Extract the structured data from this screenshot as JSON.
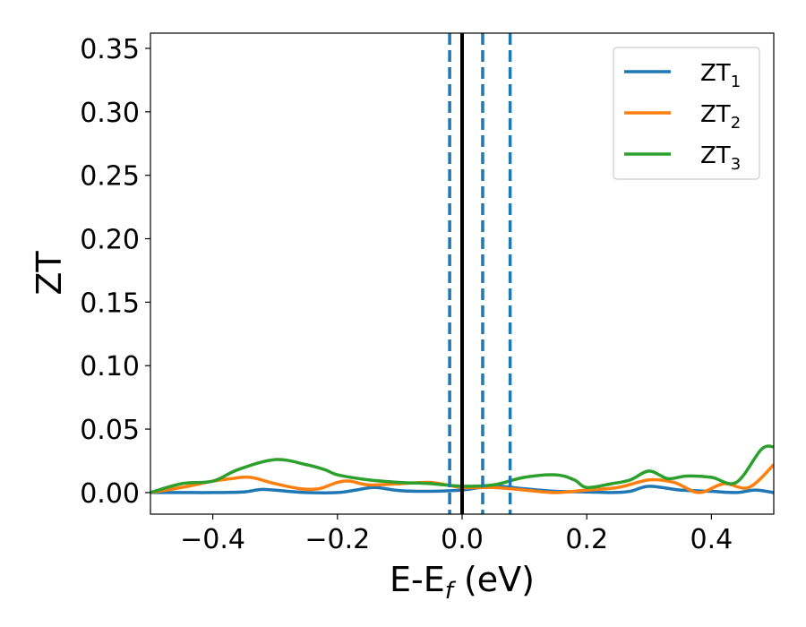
{
  "chart_data": {
    "type": "line",
    "xlabel_main": "E-E",
    "xlabel_sub": "f",
    "xlabel_unit": " (eV)",
    "ylabel": "ZT",
    "xlim": [
      -0.5,
      0.5
    ],
    "ylim": [
      -0.017,
      0.362
    ],
    "xticks": [
      -0.4,
      -0.2,
      0.0,
      0.2,
      0.4
    ],
    "xtick_labels": [
      "−0.4",
      "−0.2",
      "0.0",
      "0.2",
      "0.4"
    ],
    "yticks": [
      0.0,
      0.05,
      0.1,
      0.15,
      0.2,
      0.25,
      0.3,
      0.35
    ],
    "ytick_labels": [
      "0.00",
      "0.05",
      "0.10",
      "0.15",
      "0.20",
      "0.25",
      "0.30",
      "0.35"
    ],
    "grid": false,
    "legend_position": "top-right",
    "vlines": [
      {
        "x": 0.0,
        "style": "solid",
        "color": "#000000"
      },
      {
        "x": -0.02,
        "style": "dashed",
        "color": "#1f77b4"
      },
      {
        "x": 0.033,
        "style": "dashed",
        "color": "#1f77b4"
      },
      {
        "x": 0.077,
        "style": "dashed",
        "color": "#1f77b4"
      }
    ],
    "series": [
      {
        "name_main": "ZT",
        "name_sub": "1",
        "color": "#1f77b4",
        "x": [
          -0.5,
          -0.45,
          -0.4,
          -0.35,
          -0.32,
          -0.28,
          -0.25,
          -0.2,
          -0.17,
          -0.14,
          -0.1,
          -0.05,
          0.0,
          0.03,
          0.06,
          0.1,
          0.15,
          0.2,
          0.24,
          0.27,
          0.3,
          0.35,
          0.4,
          0.44,
          0.47,
          0.5
        ],
        "y": [
          0.0,
          0.0,
          0.0,
          0.0005,
          0.0025,
          0.001,
          0.0,
          0.0,
          0.002,
          0.004,
          0.0015,
          0.001,
          0.002,
          0.004,
          0.005,
          0.003,
          0.001,
          0.0005,
          0.0,
          0.001,
          0.005,
          0.002,
          0.001,
          0.0,
          0.002,
          0.0
        ]
      },
      {
        "name_main": "ZT",
        "name_sub": "2",
        "color": "#ff7f0e",
        "x": [
          -0.5,
          -0.45,
          -0.4,
          -0.37,
          -0.34,
          -0.3,
          -0.26,
          -0.23,
          -0.2,
          -0.18,
          -0.15,
          -0.1,
          -0.05,
          0.0,
          0.05,
          0.1,
          0.15,
          0.2,
          0.25,
          0.3,
          0.34,
          0.38,
          0.42,
          0.46,
          0.5
        ],
        "y": [
          0.0,
          0.004,
          0.009,
          0.011,
          0.012,
          0.007,
          0.003,
          0.003,
          0.008,
          0.009,
          0.006,
          0.007,
          0.008,
          0.004,
          0.004,
          0.002,
          0.0,
          0.002,
          0.004,
          0.01,
          0.008,
          0.0,
          0.007,
          0.004,
          0.022
        ]
      },
      {
        "name_main": "ZT",
        "name_sub": "3",
        "color": "#2ca02c",
        "x": [
          -0.5,
          -0.45,
          -0.4,
          -0.36,
          -0.3,
          -0.25,
          -0.22,
          -0.2,
          -0.15,
          -0.1,
          -0.05,
          0.0,
          0.05,
          0.1,
          0.15,
          0.18,
          0.2,
          0.24,
          0.27,
          0.3,
          0.33,
          0.36,
          0.4,
          0.44,
          0.48,
          0.5
        ],
        "y": [
          0.0,
          0.007,
          0.009,
          0.018,
          0.026,
          0.022,
          0.018,
          0.014,
          0.01,
          0.008,
          0.007,
          0.005,
          0.006,
          0.012,
          0.014,
          0.01,
          0.004,
          0.007,
          0.01,
          0.017,
          0.011,
          0.013,
          0.012,
          0.008,
          0.034,
          0.036
        ]
      }
    ]
  }
}
